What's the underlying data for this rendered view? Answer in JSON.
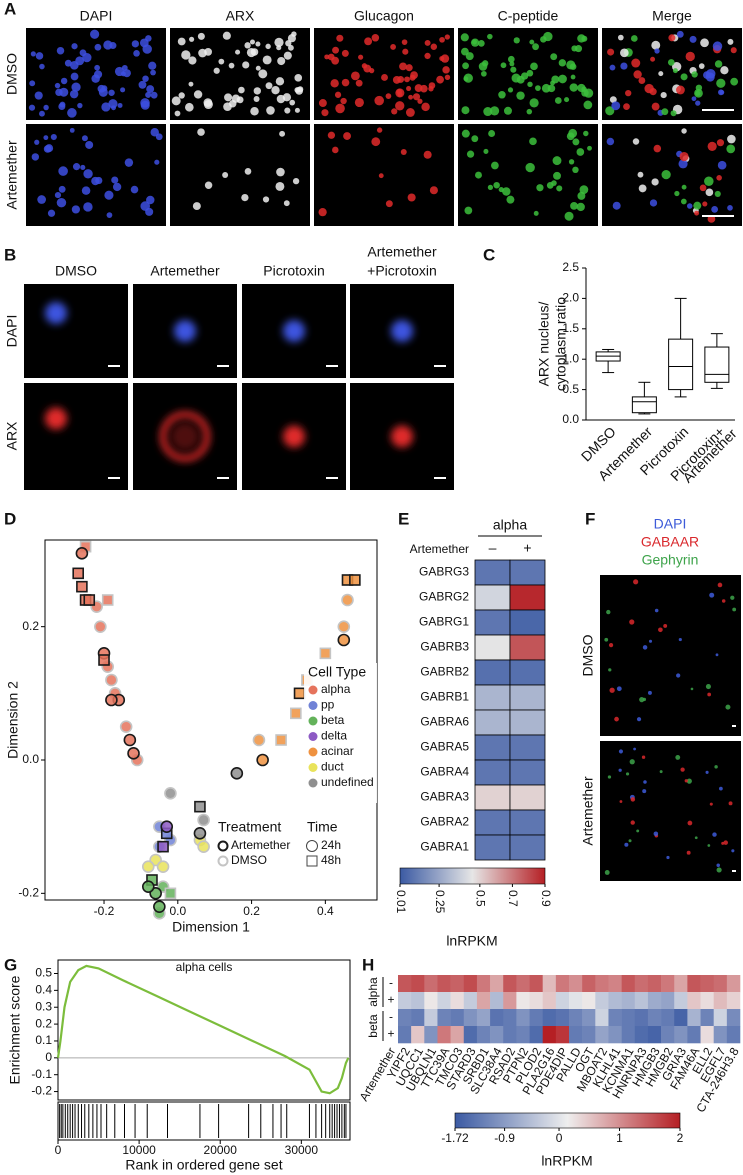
{
  "panel_labels": [
    "A",
    "B",
    "C",
    "D",
    "E",
    "F",
    "G",
    "H"
  ],
  "A": {
    "columns": [
      "DAPI",
      "ARX",
      "Glucagon",
      "C-peptide",
      "Merge"
    ],
    "rows": [
      "DMSO",
      "Artemether"
    ]
  },
  "B": {
    "columns": [
      [
        "DMSO"
      ],
      [
        "Artemether"
      ],
      [
        "Picrotoxin"
      ],
      [
        "Artemether",
        "+Picrotoxin"
      ]
    ],
    "rows": [
      "DAPI",
      "ARX"
    ]
  },
  "C": {
    "type": "box",
    "ylabel": [
      "ARX nucleus/",
      "cytoplasm ratio"
    ],
    "categories": [
      [
        "DMSO"
      ],
      [
        "Artemether"
      ],
      [
        "Picrotoxin"
      ],
      [
        "Picrotoxin+",
        "Artemether"
      ]
    ],
    "boxes": [
      {
        "min": 0.78,
        "q1": 0.97,
        "median": 1.05,
        "q3": 1.12,
        "max": 1.16
      },
      {
        "min": 0.1,
        "q1": 0.12,
        "median": 0.3,
        "q3": 0.38,
        "max": 0.62
      },
      {
        "min": 0.38,
        "q1": 0.5,
        "median": 0.88,
        "q3": 1.33,
        "max": 2.0
      },
      {
        "min": 0.52,
        "q1": 0.62,
        "median": 0.75,
        "q3": 1.2,
        "max": 1.42
      }
    ],
    "ylim": [
      0,
      2.5
    ],
    "yticks": [
      {
        "value": 0,
        "label": "0.0"
      },
      0.5,
      {
        "value": 1,
        "label": "1.0"
      },
      1.5,
      {
        "value": 2,
        "label": "2.0"
      },
      2.5
    ]
  },
  "D": {
    "type": "scatter",
    "xlabel": "Dimension 1",
    "ylabel": "Dimension 2",
    "xlim": [
      -0.36,
      0.54
    ],
    "ylim": [
      -0.21,
      0.33
    ],
    "xticks": [
      -0.2,
      {
        "value": 0,
        "label": "0.0"
      },
      0.2,
      0.4
    ],
    "yticks": [
      -0.2,
      {
        "value": 0,
        "label": "0.0"
      },
      0.2
    ],
    "legend_title": "Cell Type",
    "treatment_title": "Treatment",
    "treatments": [
      {
        "name": "Artemether",
        "stroke": "#1a1a1a"
      },
      {
        "name": "DMSO",
        "stroke": "#c4c4c4"
      }
    ],
    "time_title": "Time",
    "times": [
      {
        "name": "24h",
        "marker": "circle"
      },
      {
        "name": "48h",
        "marker": "square"
      }
    ],
    "series": [
      {
        "name": "alpha",
        "color": "#e5735c",
        "x": [
          -0.26,
          -0.25,
          -0.27,
          -0.26,
          -0.25,
          -0.24,
          -0.22,
          -0.19,
          -0.21,
          -0.2,
          -0.2,
          -0.19,
          -0.18,
          -0.17,
          -0.16,
          -0.18,
          -0.14,
          -0.13,
          -0.12,
          -0.11
        ],
        "y": [
          0.31,
          0.32,
          0.28,
          0.26,
          0.24,
          0.24,
          0.23,
          0.24,
          0.2,
          0.16,
          0.15,
          0.14,
          0.12,
          0.1,
          0.09,
          0.09,
          0.05,
          0.03,
          0.01,
          0.0
        ],
        "treatment": [
          "Artemether",
          "DMSO",
          "Artemether",
          "Artemether",
          "Artemether",
          "Artemether",
          "DMSO",
          "DMSO",
          "DMSO",
          "Artemether",
          "Artemether",
          "DMSO",
          "DMSO",
          "DMSO",
          "Artemether",
          "Artemether",
          "DMSO",
          "Artemether",
          "Artemether",
          "DMSO"
        ],
        "time": [
          "24h",
          "48h",
          "48h",
          "48h",
          "48h",
          "48h",
          "24h",
          "48h",
          "24h",
          "24h",
          "48h",
          "24h",
          "24h",
          "24h",
          "24h",
          "24h",
          "24h",
          "24h",
          "24h",
          "24h"
        ]
      },
      {
        "name": "pp",
        "color": "#7082d6",
        "x": [
          -0.05,
          -0.03,
          -0.05,
          -0.02
        ],
        "y": [
          -0.13,
          -0.11,
          -0.1,
          -0.12
        ],
        "treatment": [
          "DMSO",
          "Artemether",
          "DMSO",
          "DMSO"
        ],
        "time": [
          "24h",
          "48h",
          "24h",
          "24h"
        ]
      },
      {
        "name": "beta",
        "color": "#63b25a",
        "x": [
          -0.06,
          -0.07,
          -0.05,
          -0.04,
          -0.02,
          -0.05,
          -0.08
        ],
        "y": [
          -0.2,
          -0.18,
          -0.22,
          -0.19,
          -0.2,
          -0.23,
          -0.19
        ],
        "treatment": [
          "Artemether",
          "Artemether",
          "Artemether",
          "DMSO",
          "DMSO",
          "DMSO",
          "Artemether"
        ],
        "time": [
          "24h",
          "48h",
          "24h",
          "24h",
          "48h",
          "24h",
          "24h"
        ]
      },
      {
        "name": "delta",
        "color": "#8d5ac4",
        "x": [
          -0.03,
          -0.04
        ],
        "y": [
          -0.1,
          -0.13
        ],
        "treatment": [
          "Artemether",
          "Artemether"
        ],
        "time": [
          "24h",
          "48h"
        ]
      },
      {
        "name": "acinar",
        "color": "#ef9240",
        "x": [
          0.46,
          0.48,
          0.46,
          0.45,
          0.45,
          0.4,
          0.35,
          0.33,
          0.32,
          0.28,
          0.23,
          0.22
        ],
        "y": [
          0.27,
          0.27,
          0.24,
          0.2,
          0.18,
          0.16,
          0.12,
          0.1,
          0.07,
          0.03,
          0.0,
          0.03
        ],
        "treatment": [
          "Artemether",
          "Artemether",
          "DMSO",
          "DMSO",
          "Artemether",
          "DMSO",
          "DMSO",
          "Artemether",
          "DMSO",
          "DMSO",
          "Artemether",
          "DMSO"
        ],
        "time": [
          "48h",
          "48h",
          "24h",
          "24h",
          "24h",
          "48h",
          "48h",
          "48h",
          "48h",
          "48h",
          "24h",
          "24h"
        ]
      },
      {
        "name": "duct",
        "color": "#e9e35b",
        "x": [
          0.06,
          0.07,
          -0.06,
          -0.08,
          -0.04
        ],
        "y": [
          -0.12,
          -0.13,
          -0.15,
          -0.16,
          -0.16
        ],
        "treatment": [
          "DMSO",
          "DMSO",
          "DMSO",
          "DMSO",
          "DMSO"
        ],
        "time": [
          "24h",
          "24h",
          "24h",
          "24h",
          "24h"
        ]
      },
      {
        "name": "undefined",
        "color": "#8f8f8f",
        "x": [
          -0.02,
          0.16,
          0.06,
          0.06,
          0.07
        ],
        "y": [
          -0.05,
          -0.02,
          -0.07,
          -0.11,
          -0.09
        ],
        "treatment": [
          "DMSO",
          "Artemether",
          "Artemether",
          "Artemether",
          "DMSO"
        ],
        "time": [
          "24h",
          "24h",
          "48h",
          "24h",
          "24h"
        ]
      }
    ]
  },
  "E": {
    "type": "heatmap",
    "column_header": "alpha",
    "row_label": "Artemether",
    "columns": [
      "–",
      "+"
    ],
    "rows": [
      "GABRG3",
      "GABRG2",
      "GABRG1",
      "GABRB3",
      "GABRB2",
      "GABRB1",
      "GABRA6",
      "GABRA5",
      "GABRA4",
      "GABRA3",
      "GABRA2",
      "GABRA1"
    ],
    "values": [
      [
        0.1,
        0.1
      ],
      [
        0.4,
        0.88
      ],
      [
        0.1,
        0.05
      ],
      [
        0.45,
        0.78
      ],
      [
        0.08,
        0.08
      ],
      [
        0.3,
        0.3
      ],
      [
        0.3,
        0.3
      ],
      [
        0.1,
        0.1
      ],
      [
        0.1,
        0.1
      ],
      [
        0.5,
        0.5
      ],
      [
        0.1,
        0.1
      ],
      [
        0.1,
        0.1
      ]
    ],
    "colors": [
      "#3b5aa3",
      "#e6e6e6",
      "#b51f24"
    ],
    "clim": [
      0.01,
      0.9
    ],
    "cticks": [
      0.01,
      0.25,
      0.5,
      0.7,
      0.9
    ],
    "clabel": "lnRPKM"
  },
  "F": {
    "stains": [
      {
        "name": "DAPI",
        "color": "#3d5bd9"
      },
      {
        "name": "GABAAR",
        "color": "#d9282c"
      },
      {
        "name": "Gephyrin",
        "color": "#3da34a"
      }
    ],
    "rows": [
      "DMSO",
      "Artemether"
    ]
  },
  "G": {
    "type": "line",
    "title": "alpha cells",
    "xlabel": "Rank in ordered gene set",
    "ylabel": "Enrichment score",
    "color": "#7cbd3c",
    "x": [
      0,
      300,
      800,
      1500,
      2500,
      3500,
      5000,
      8000,
      12000,
      16000,
      20000,
      24000,
      28000,
      31000,
      32500,
      33500,
      34500,
      35000,
      35500,
      35800
    ],
    "y": [
      0,
      0.1,
      0.3,
      0.45,
      0.52,
      0.545,
      0.53,
      0.46,
      0.37,
      0.28,
      0.19,
      0.1,
      0.01,
      -0.07,
      -0.2,
      -0.21,
      -0.18,
      -0.12,
      -0.03,
      0
    ],
    "hits": [
      200,
      400,
      600,
      900,
      1200,
      1500,
      1800,
      2100,
      2500,
      2900,
      3300,
      3800,
      4300,
      4800,
      5300,
      6000,
      7000,
      8200,
      9500,
      11000,
      13500,
      17500,
      19800,
      23500,
      25000,
      26500,
      27500,
      28200,
      31000,
      31800,
      32500,
      33000,
      33500,
      33800,
      34100,
      34400,
      34700,
      35000,
      35300,
      35500
    ],
    "xlim": [
      0,
      36000
    ],
    "ylim": [
      -0.25,
      0.58
    ],
    "xticks": [
      0,
      10000,
      20000,
      30000
    ],
    "yticks": [
      -0.2,
      -0.1,
      0,
      0.1,
      0.2,
      0.3,
      0.4,
      0.5
    ]
  },
  "H": {
    "type": "heatmap",
    "row_label": "Artemether",
    "groups": [
      {
        "name": "alpha",
        "rows": [
          "-",
          "+"
        ]
      },
      {
        "name": "beta",
        "rows": [
          "-",
          "+"
        ]
      }
    ],
    "columns": [
      "YIPF2",
      "UQCC1",
      "UBQLN1",
      "TTC39A",
      "TMCO3",
      "STARD3",
      "SRBD1",
      "SLC38A4",
      "RSAD2",
      "PTPN2",
      "PLOD2",
      "PLA2G16",
      "PDE4DIP",
      "PALLD",
      "OGT",
      "MBOAT2",
      "KLHL41",
      "KCNMA1",
      "HNRNPA3",
      "HMGB3",
      "HMGB2",
      "GRIA3",
      "FAM46A",
      "ELL2",
      "EGFL7",
      "CTA-246H3.8"
    ],
    "values": [
      [
        1.5,
        1.6,
        1.3,
        1.5,
        1.4,
        1.6,
        1.2,
        0.8,
        1.5,
        1.3,
        1.5,
        0.6,
        1.2,
        1.0,
        1.4,
        1.2,
        1.1,
        1.5,
        1.3,
        1.4,
        1.2,
        0.8,
        1.5,
        1.4,
        1.3,
        0.9
      ],
      [
        -0.3,
        -0.4,
        0.2,
        -0.2,
        0.3,
        -0.3,
        0.8,
        -0.5,
        0.9,
        0.2,
        0.3,
        0.5,
        -0.2,
        0,
        0.2,
        -0.3,
        -0.5,
        -0.6,
        -0.4,
        -0.7,
        -0.8,
        -0.3,
        0.5,
        0.3,
        0.6,
        0.4
      ],
      [
        -1.2,
        -1.3,
        -0.3,
        -1.2,
        -1.3,
        -1.0,
        -0.8,
        -1.4,
        -1.3,
        -1.0,
        -1.3,
        -1.5,
        -1.4,
        -1.2,
        -1.0,
        -0.2,
        -1.2,
        -1.3,
        -1.4,
        -1.2,
        -1.3,
        -1.6,
        -0.6,
        -1.2,
        -0.2,
        -1.1
      ],
      [
        -1.3,
        0.5,
        -1.0,
        1.2,
        0.8,
        -1.5,
        -1.2,
        -1.0,
        -1.3,
        -1.2,
        -1.5,
        2.0,
        1.8,
        -1.3,
        -1.2,
        -0.8,
        -1.0,
        -1.3,
        -1.5,
        -1.6,
        -1.2,
        -1.0,
        -1.3,
        0.3,
        -1.0,
        -1.3
      ]
    ],
    "colors": [
      "#3b5aa3",
      "#eeeeee",
      "#b51f24"
    ],
    "clim": [
      -1.72,
      2
    ],
    "cticks": [
      -1.72,
      -0.9,
      0,
      1,
      2
    ],
    "clabel": "lnRPKM"
  }
}
